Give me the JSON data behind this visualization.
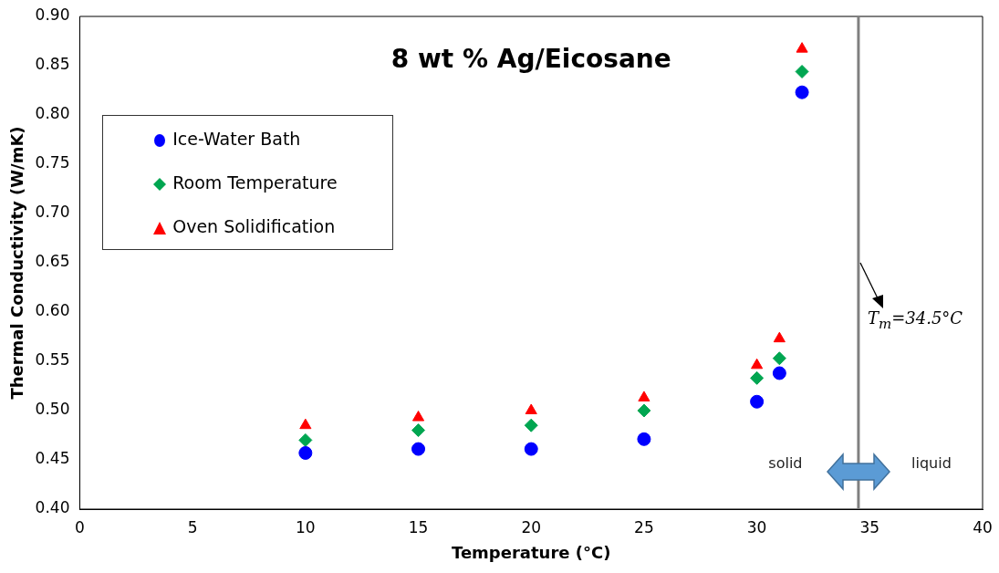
{
  "chart_data": {
    "type": "scatter",
    "title": "8 wt % Ag/Eicosane",
    "xlabel": "Temperature (°C)",
    "ylabel": "Thermal Conductivity (W/mK)",
    "x": [
      10,
      15,
      20,
      25,
      30,
      31,
      32
    ],
    "series": [
      {
        "name": "Ice-Water Bath",
        "color": "#0000ff",
        "marker": "circle",
        "values": [
          0.457,
          0.461,
          0.461,
          0.471,
          0.509,
          0.538,
          0.823
        ]
      },
      {
        "name": "Room Temperature",
        "color": "#00a651",
        "marker": "diamond",
        "values": [
          0.47,
          0.48,
          0.485,
          0.5,
          0.533,
          0.553,
          0.844
        ]
      },
      {
        "name": "Oven Solidification",
        "color": "#ff0000",
        "marker": "triangle",
        "values": [
          0.485,
          0.493,
          0.5,
          0.513,
          0.546,
          0.573,
          0.867
        ]
      }
    ],
    "xlim": [
      0,
      40
    ],
    "xticks": [
      0,
      5,
      10,
      15,
      20,
      25,
      30,
      35,
      40
    ],
    "ylim": [
      0.4,
      0.9
    ],
    "yticks": [
      {
        "value": 0.4,
        "label": "0.40"
      },
      {
        "value": 0.45,
        "label": "0.45"
      },
      {
        "value": 0.5,
        "label": "0.50"
      },
      {
        "value": 0.55,
        "label": "0.55"
      },
      {
        "value": 0.6,
        "label": "0.60"
      },
      {
        "value": 0.65,
        "label": "0.65"
      },
      {
        "value": 0.7,
        "label": "0.70"
      },
      {
        "value": 0.75,
        "label": "0.75"
      },
      {
        "value": 0.8,
        "label": "0.80"
      },
      {
        "value": 0.85,
        "label": "0.85"
      },
      {
        "value": 0.9,
        "label": "0.90"
      }
    ],
    "ref_lines": [
      {
        "axis": "x",
        "value": 34.5,
        "label": "T$_{m}$=34.5°C",
        "color": "#808080"
      }
    ],
    "annotations": [
      "solid",
      "liquid"
    ],
    "grid": false,
    "legend": "top left"
  }
}
